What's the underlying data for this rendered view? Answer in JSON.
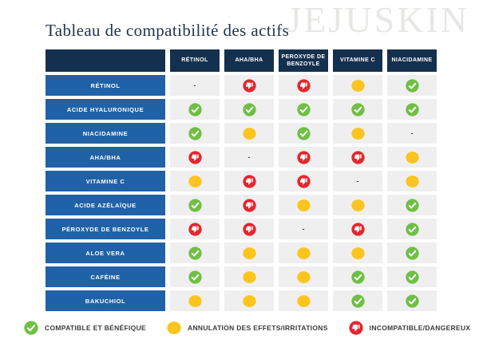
{
  "title": "Tableau de compatibilité des actifs",
  "watermark": "JEJUSKIN",
  "chart_data": {
    "type": "table",
    "title": "Tableau de compatibilité des actifs",
    "columns": [
      "RÉTINOL",
      "AHA/BHA",
      "PEROXYDE DE BENZOYLE",
      "VITAMINE C",
      "NIACIDAMINE"
    ],
    "rows": [
      {
        "label": "RÉTINOL",
        "cells": [
          "dash",
          "bad",
          "bad",
          "warn",
          "good"
        ]
      },
      {
        "label": "ACIDE HYALURONIQUE",
        "cells": [
          "good",
          "good",
          "good",
          "good",
          "good"
        ]
      },
      {
        "label": "NIACIDAMINE",
        "cells": [
          "good",
          "warn",
          "good",
          "warn",
          "dash"
        ]
      },
      {
        "label": "AHA/BHA",
        "cells": [
          "bad",
          "dash",
          "bad",
          "bad",
          "warn"
        ]
      },
      {
        "label": "VITAMINE C",
        "cells": [
          "warn",
          "bad",
          "bad",
          "dash",
          "warn"
        ]
      },
      {
        "label": "ACIDE AZÉLAÏQUE",
        "cells": [
          "good",
          "bad",
          "warn",
          "warn",
          "good"
        ]
      },
      {
        "label": "PÉROXYDE DE BENZOYLE",
        "cells": [
          "bad",
          "bad",
          "dash",
          "bad",
          "good"
        ]
      },
      {
        "label": "ALOE VERA",
        "cells": [
          "good",
          "warn",
          "warn",
          "warn",
          "good"
        ]
      },
      {
        "label": "CAFÉINE",
        "cells": [
          "good",
          "warn",
          "warn",
          "good",
          "good"
        ]
      },
      {
        "label": "BAKUCHIOL",
        "cells": [
          "warn",
          "warn",
          "warn",
          "good",
          "good"
        ]
      }
    ],
    "cell_meaning": {
      "good": "COMPATIBLE ET BÉNÉFIQUE",
      "warn": "ANNULATION DES EFFETS/IRRITATIONS",
      "bad": "INCOMPATIBLE/DANGEREUX",
      "dash": "-"
    }
  },
  "legend": [
    {
      "type": "good",
      "icon": "check-badge-icon",
      "label": "COMPATIBLE ET BÉNÉFIQUE"
    },
    {
      "type": "warn",
      "icon": "warning-dot-icon",
      "label": "ANNULATION DES EFFETS/IRRITATIONS"
    },
    {
      "type": "bad",
      "icon": "thumbs-down-icon",
      "label": "INCOMPATIBLE/DANGEREUX"
    }
  ],
  "icons": {
    "good": "check-badge-icon",
    "warn": "warning-dot-icon",
    "bad": "thumbs-down-icon"
  },
  "dash_glyph": "-",
  "colors": {
    "green": "#6fbf44",
    "yellow": "#fbc51d",
    "red": "#e5262e",
    "header_navy": "#14304f",
    "row_blue": "#2062a7",
    "cell_gray": "#efefef",
    "title_navy": "#22334d",
    "watermark_gray": "#e7e7e5",
    "legend_text": "#3b3b3b"
  }
}
